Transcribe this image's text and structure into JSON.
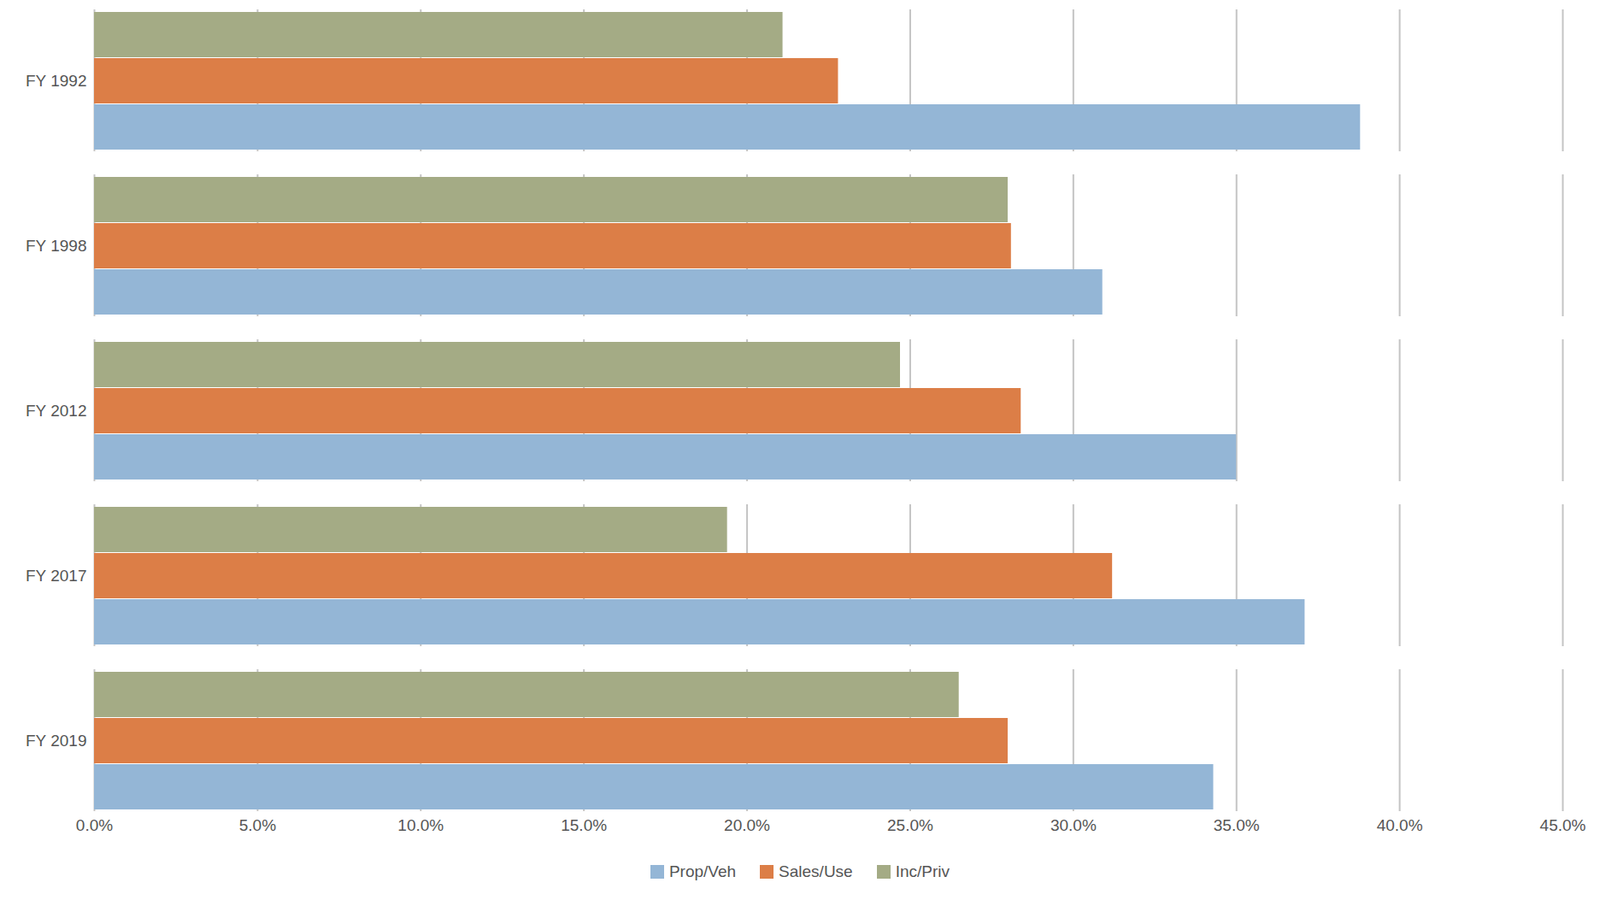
{
  "chart_data": {
    "type": "bar",
    "orientation": "horizontal",
    "categories": [
      "FY 1992",
      "FY 1998",
      "FY 2012",
      "FY 2017",
      "FY 2019"
    ],
    "series": [
      {
        "name": "Prop/Veh",
        "color": "#94b6d6",
        "values": [
          38.8,
          30.9,
          35.0,
          37.1,
          34.3
        ]
      },
      {
        "name": "Sales/Use",
        "color": "#dc7e47",
        "values": [
          22.8,
          28.1,
          28.4,
          31.2,
          28.0
        ]
      },
      {
        "name": "Inc/Priv",
        "color": "#a4ab85",
        "values": [
          21.1,
          28.0,
          24.7,
          19.4,
          26.5
        ]
      }
    ],
    "xlim": [
      0,
      45
    ],
    "xticks": [
      {
        "value": 0,
        "label": "0.0%"
      },
      {
        "value": 5,
        "label": "5.0%"
      },
      {
        "value": 10,
        "label": "10.0%"
      },
      {
        "value": 15,
        "label": "15.0%"
      },
      {
        "value": 20,
        "label": "20.0%"
      },
      {
        "value": 25,
        "label": "25.0%"
      },
      {
        "value": 30,
        "label": "30.0%"
      },
      {
        "value": 35,
        "label": "35.0%"
      },
      {
        "value": 40,
        "label": "40.0%"
      },
      {
        "value": 45,
        "label": "45.0%"
      }
    ],
    "grid": true,
    "legend": "bottom"
  }
}
